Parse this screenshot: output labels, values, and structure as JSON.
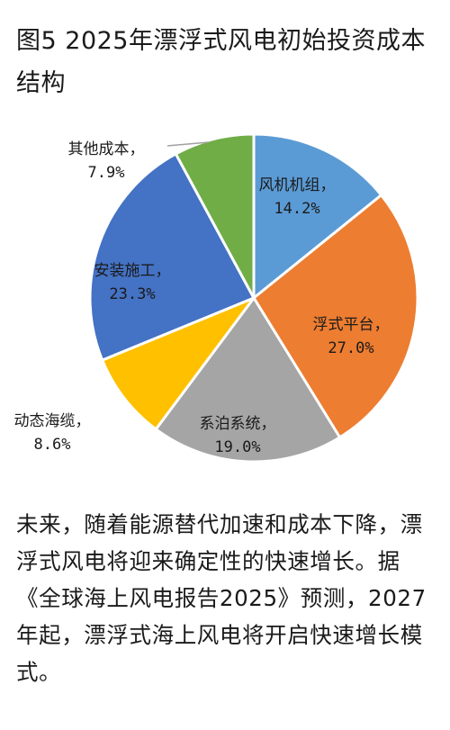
{
  "figure": {
    "title": "图5 2025年漂浮式风电初始投资成本结构"
  },
  "chart_data": {
    "type": "pie",
    "title": "",
    "slices": [
      {
        "label": "风机机组，",
        "value": 14.2,
        "value_text": "14.2%",
        "color": "#5b9bd5"
      },
      {
        "label": "浮式平台，",
        "value": 27.0,
        "value_text": "27.0%",
        "color": "#ed7d31"
      },
      {
        "label": "系泊系统，",
        "value": 19.0,
        "value_text": "19.0%",
        "color": "#a5a5a5"
      },
      {
        "label": "动态海缆，",
        "value": 8.6,
        "value_text": "8.6%",
        "color": "#ffc000"
      },
      {
        "label": "安装施工，",
        "value": 23.3,
        "value_text": "23.3%",
        "color": "#4472c4"
      },
      {
        "label": "其他成本，",
        "value": 7.9,
        "value_text": "7.9%",
        "color": "#70ad47"
      }
    ],
    "start": "12 o'clock",
    "direction": "clockwise",
    "border_color": "#ffffff"
  },
  "article": {
    "paragraph": "未来，随着能源替代加速和成本下降，漂浮式风电将迎来确定性的快速增长。据《全球海上风电报告2025》预测，2027年起，漂浮式海上风电将开启快速增长模式。"
  }
}
